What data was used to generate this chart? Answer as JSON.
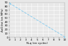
{
  "title": "",
  "xlabel": "Nₑq (en cycles)",
  "ylabel": "ΔσD,fat (en MPa)",
  "xmin": 0,
  "xmax": 100000000.0,
  "ymin": 0,
  "ymax": 90,
  "x_ticks": [
    0,
    10000000.0,
    20000000.0,
    30000000.0,
    40000000.0,
    50000000.0,
    60000000.0,
    70000000.0,
    80000000.0,
    90000000.0,
    100000000.0
  ],
  "x_tick_labels": [
    "0",
    "1",
    "2",
    "3",
    "4",
    "5",
    "6",
    "7",
    "8",
    "9",
    "10"
  ],
  "y_ticks": [
    0,
    10,
    20,
    30,
    40,
    50,
    60,
    70,
    80,
    90
  ],
  "y_tick_labels": [
    "0",
    "10",
    "20",
    "30",
    "40",
    "50",
    "60",
    "70",
    "80",
    "90"
  ],
  "line_color": "#88ccee",
  "line_style": "--",
  "line_width": 0.7,
  "marker": "o",
  "marker_size": 1.0,
  "bg_color": "#e8e8e8",
  "plot_bg_color": "#e8e8e8",
  "grid_color": "#ffffff",
  "x_start": 0,
  "x_end": 100000000.0,
  "y_start": 88,
  "y_end": 1,
  "figsize": [
    1.0,
    0.68
  ],
  "dpi": 100,
  "tick_fontsize": 2.8,
  "label_fontsize": 3.0
}
